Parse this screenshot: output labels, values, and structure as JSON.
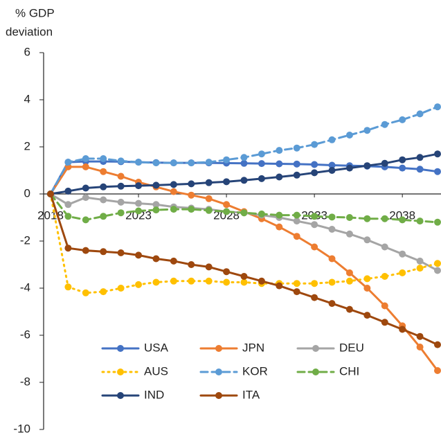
{
  "chart_data": {
    "type": "line",
    "y_label": [
      "% GDP",
      "deviation"
    ],
    "x": [
      2018,
      2019,
      2020,
      2021,
      2022,
      2023,
      2024,
      2025,
      2026,
      2027,
      2028,
      2029,
      2030,
      2031,
      2032,
      2033,
      2034,
      2035,
      2036,
      2037,
      2038,
      2039,
      2040
    ],
    "xlim": [
      2018,
      2040
    ],
    "xticks": [
      2018,
      2023,
      2028,
      2033,
      2038
    ],
    "ylim": [
      -10,
      6
    ],
    "yticks": [
      -10,
      -8,
      -6,
      -4,
      -2,
      0,
      2,
      4,
      6
    ],
    "grid": false,
    "series": [
      {
        "name": "USA",
        "color": "#4472c4",
        "dash": "solid",
        "values": [
          0,
          1.35,
          1.38,
          1.38,
          1.37,
          1.35,
          1.33,
          1.32,
          1.32,
          1.32,
          1.31,
          1.3,
          1.29,
          1.28,
          1.27,
          1.25,
          1.22,
          1.2,
          1.18,
          1.15,
          1.1,
          1.05,
          0.95
        ]
      },
      {
        "name": "JPN",
        "color": "#ed7d31",
        "dash": "solid",
        "values": [
          0,
          1.15,
          1.15,
          0.95,
          0.75,
          0.5,
          0.3,
          0.1,
          -0.05,
          -0.2,
          -0.45,
          -0.75,
          -1.05,
          -1.4,
          -1.8,
          -2.25,
          -2.75,
          -3.35,
          -4.0,
          -4.75,
          -5.6,
          -6.5,
          -7.5
        ]
      },
      {
        "name": "DEU",
        "color": "#a5a5a5",
        "dash": "solid",
        "values": [
          0,
          -0.45,
          -0.15,
          -0.25,
          -0.35,
          -0.4,
          -0.45,
          -0.55,
          -0.6,
          -0.65,
          -0.75,
          -0.8,
          -0.9,
          -1.0,
          -1.15,
          -1.3,
          -1.5,
          -1.7,
          -1.95,
          -2.25,
          -2.55,
          -2.85,
          -3.25
        ]
      },
      {
        "name": "AUS",
        "color": "#ffc000",
        "dash": "dot",
        "values": [
          0,
          -3.95,
          -4.2,
          -4.15,
          -4.0,
          -3.85,
          -3.75,
          -3.7,
          -3.7,
          -3.7,
          -3.75,
          -3.75,
          -3.8,
          -3.8,
          -3.8,
          -3.8,
          -3.75,
          -3.7,
          -3.6,
          -3.5,
          -3.35,
          -3.15,
          -2.95
        ]
      },
      {
        "name": "KOR",
        "color": "#5b9bd5",
        "dash": "dash",
        "values": [
          0,
          1.35,
          1.5,
          1.5,
          1.4,
          1.35,
          1.32,
          1.32,
          1.32,
          1.35,
          1.45,
          1.55,
          1.7,
          1.85,
          1.95,
          2.1,
          2.3,
          2.5,
          2.7,
          2.95,
          3.15,
          3.4,
          3.7
        ]
      },
      {
        "name": "CHI",
        "color": "#70ad47",
        "dash": "dash",
        "values": [
          0,
          -0.95,
          -1.1,
          -0.95,
          -0.8,
          -0.72,
          -0.68,
          -0.65,
          -0.65,
          -0.7,
          -0.75,
          -0.8,
          -0.85,
          -0.9,
          -0.9,
          -0.95,
          -0.98,
          -1.0,
          -1.05,
          -1.05,
          -1.1,
          -1.15,
          -1.2
        ]
      },
      {
        "name": "IND",
        "color": "#264478",
        "dash": "solid",
        "values": [
          0,
          0.12,
          0.25,
          0.3,
          0.33,
          0.35,
          0.37,
          0.4,
          0.43,
          0.48,
          0.52,
          0.58,
          0.65,
          0.72,
          0.8,
          0.9,
          1.0,
          1.1,
          1.2,
          1.3,
          1.45,
          1.55,
          1.7
        ]
      },
      {
        "name": "ITA",
        "color": "#9e480e",
        "dash": "solid",
        "values": [
          0,
          -2.3,
          -2.4,
          -2.45,
          -2.5,
          -2.6,
          -2.75,
          -2.85,
          -3.0,
          -3.1,
          -3.3,
          -3.5,
          -3.7,
          -3.9,
          -4.15,
          -4.4,
          -4.65,
          -4.9,
          -5.15,
          -5.45,
          -5.75,
          -6.05,
          -6.4
        ]
      }
    ]
  }
}
